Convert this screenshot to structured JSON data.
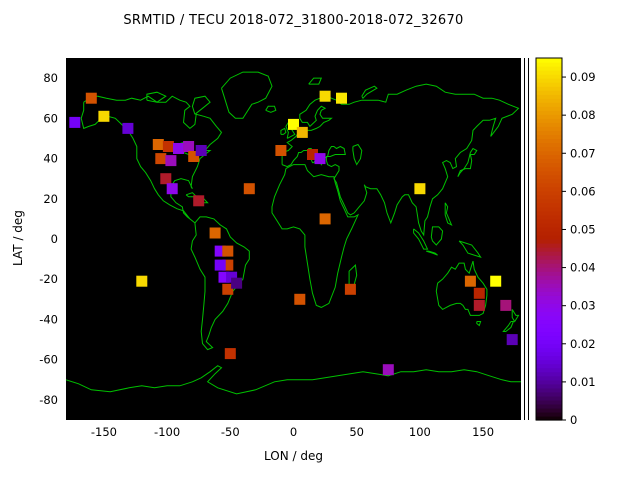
{
  "chart_data": {
    "type": "heatmap",
    "title": "SRMTID / TECU 2018-072_31800-2018-072_32670",
    "xlabel": "LON / deg",
    "ylabel": "LAT / deg",
    "xlim": [
      -180,
      180
    ],
    "ylim": [
      -90,
      90
    ],
    "x_ticks": [
      -150,
      -100,
      -50,
      0,
      50,
      100,
      150
    ],
    "y_ticks": [
      -80,
      -60,
      -40,
      -20,
      0,
      20,
      40,
      60,
      80
    ],
    "grid": false,
    "basemap": "world coastlines on black background",
    "colorbar": {
      "min": 0,
      "max": 0.095,
      "ticks": [
        0,
        0.01,
        0.02,
        0.03,
        0.04,
        0.05,
        0.06,
        0.07,
        0.08,
        0.09
      ],
      "palette": "gnuplot-black-purple-red-orange-yellow",
      "position": "right"
    },
    "points_format": [
      "lon_deg",
      "lat_deg",
      "value_TECU"
    ],
    "points": [
      [
        -160,
        70,
        0.065
      ],
      [
        -150,
        61,
        0.09
      ],
      [
        -173,
        58,
        0.02
      ],
      [
        -131,
        55,
        0.015
      ],
      [
        -107,
        47,
        0.07
      ],
      [
        -99,
        46,
        0.055
      ],
      [
        -91,
        45,
        0.03
      ],
      [
        -83,
        46,
        0.035
      ],
      [
        -105,
        40,
        0.062
      ],
      [
        -97,
        39,
        0.035
      ],
      [
        -79,
        41,
        0.065
      ],
      [
        -73,
        44,
        0.012
      ],
      [
        -101,
        30,
        0.045
      ],
      [
        -96,
        25,
        0.03
      ],
      [
        -75,
        19,
        0.045
      ],
      [
        -62,
        3,
        0.07
      ],
      [
        -58,
        -6,
        0.025
      ],
      [
        -52,
        -6,
        0.065
      ],
      [
        -52,
        -13,
        0.06
      ],
      [
        -58,
        -13,
        0.02
      ],
      [
        -55,
        -19,
        0.025
      ],
      [
        -49,
        -19,
        0.015
      ],
      [
        -52,
        -25,
        0.06
      ],
      [
        -45,
        -22,
        0.008
      ],
      [
        -120,
        -21,
        0.09
      ],
      [
        -50,
        -57,
        0.055
      ],
      [
        -35,
        25,
        0.065
      ],
      [
        -10,
        44,
        0.065
      ],
      [
        0,
        57,
        0.095
      ],
      [
        7,
        53,
        0.085
      ],
      [
        15,
        42,
        0.05
      ],
      [
        21,
        40,
        0.03
      ],
      [
        25,
        71,
        0.09
      ],
      [
        38,
        70,
        0.092
      ],
      [
        25,
        10,
        0.07
      ],
      [
        5,
        -30,
        0.065
      ],
      [
        45,
        -25,
        0.06
      ],
      [
        100,
        25,
        0.09
      ],
      [
        140,
        -21,
        0.07
      ],
      [
        147,
        -27,
        0.05
      ],
      [
        147,
        -33,
        0.045
      ],
      [
        160,
        -21,
        0.095
      ],
      [
        168,
        -33,
        0.04
      ],
      [
        75,
        -65,
        0.035
      ],
      [
        173,
        -50,
        0.012
      ]
    ]
  },
  "colors": {
    "background": "#ffffff",
    "plot_background": "#000000",
    "coastline": "#00c000",
    "text": "#000000"
  }
}
